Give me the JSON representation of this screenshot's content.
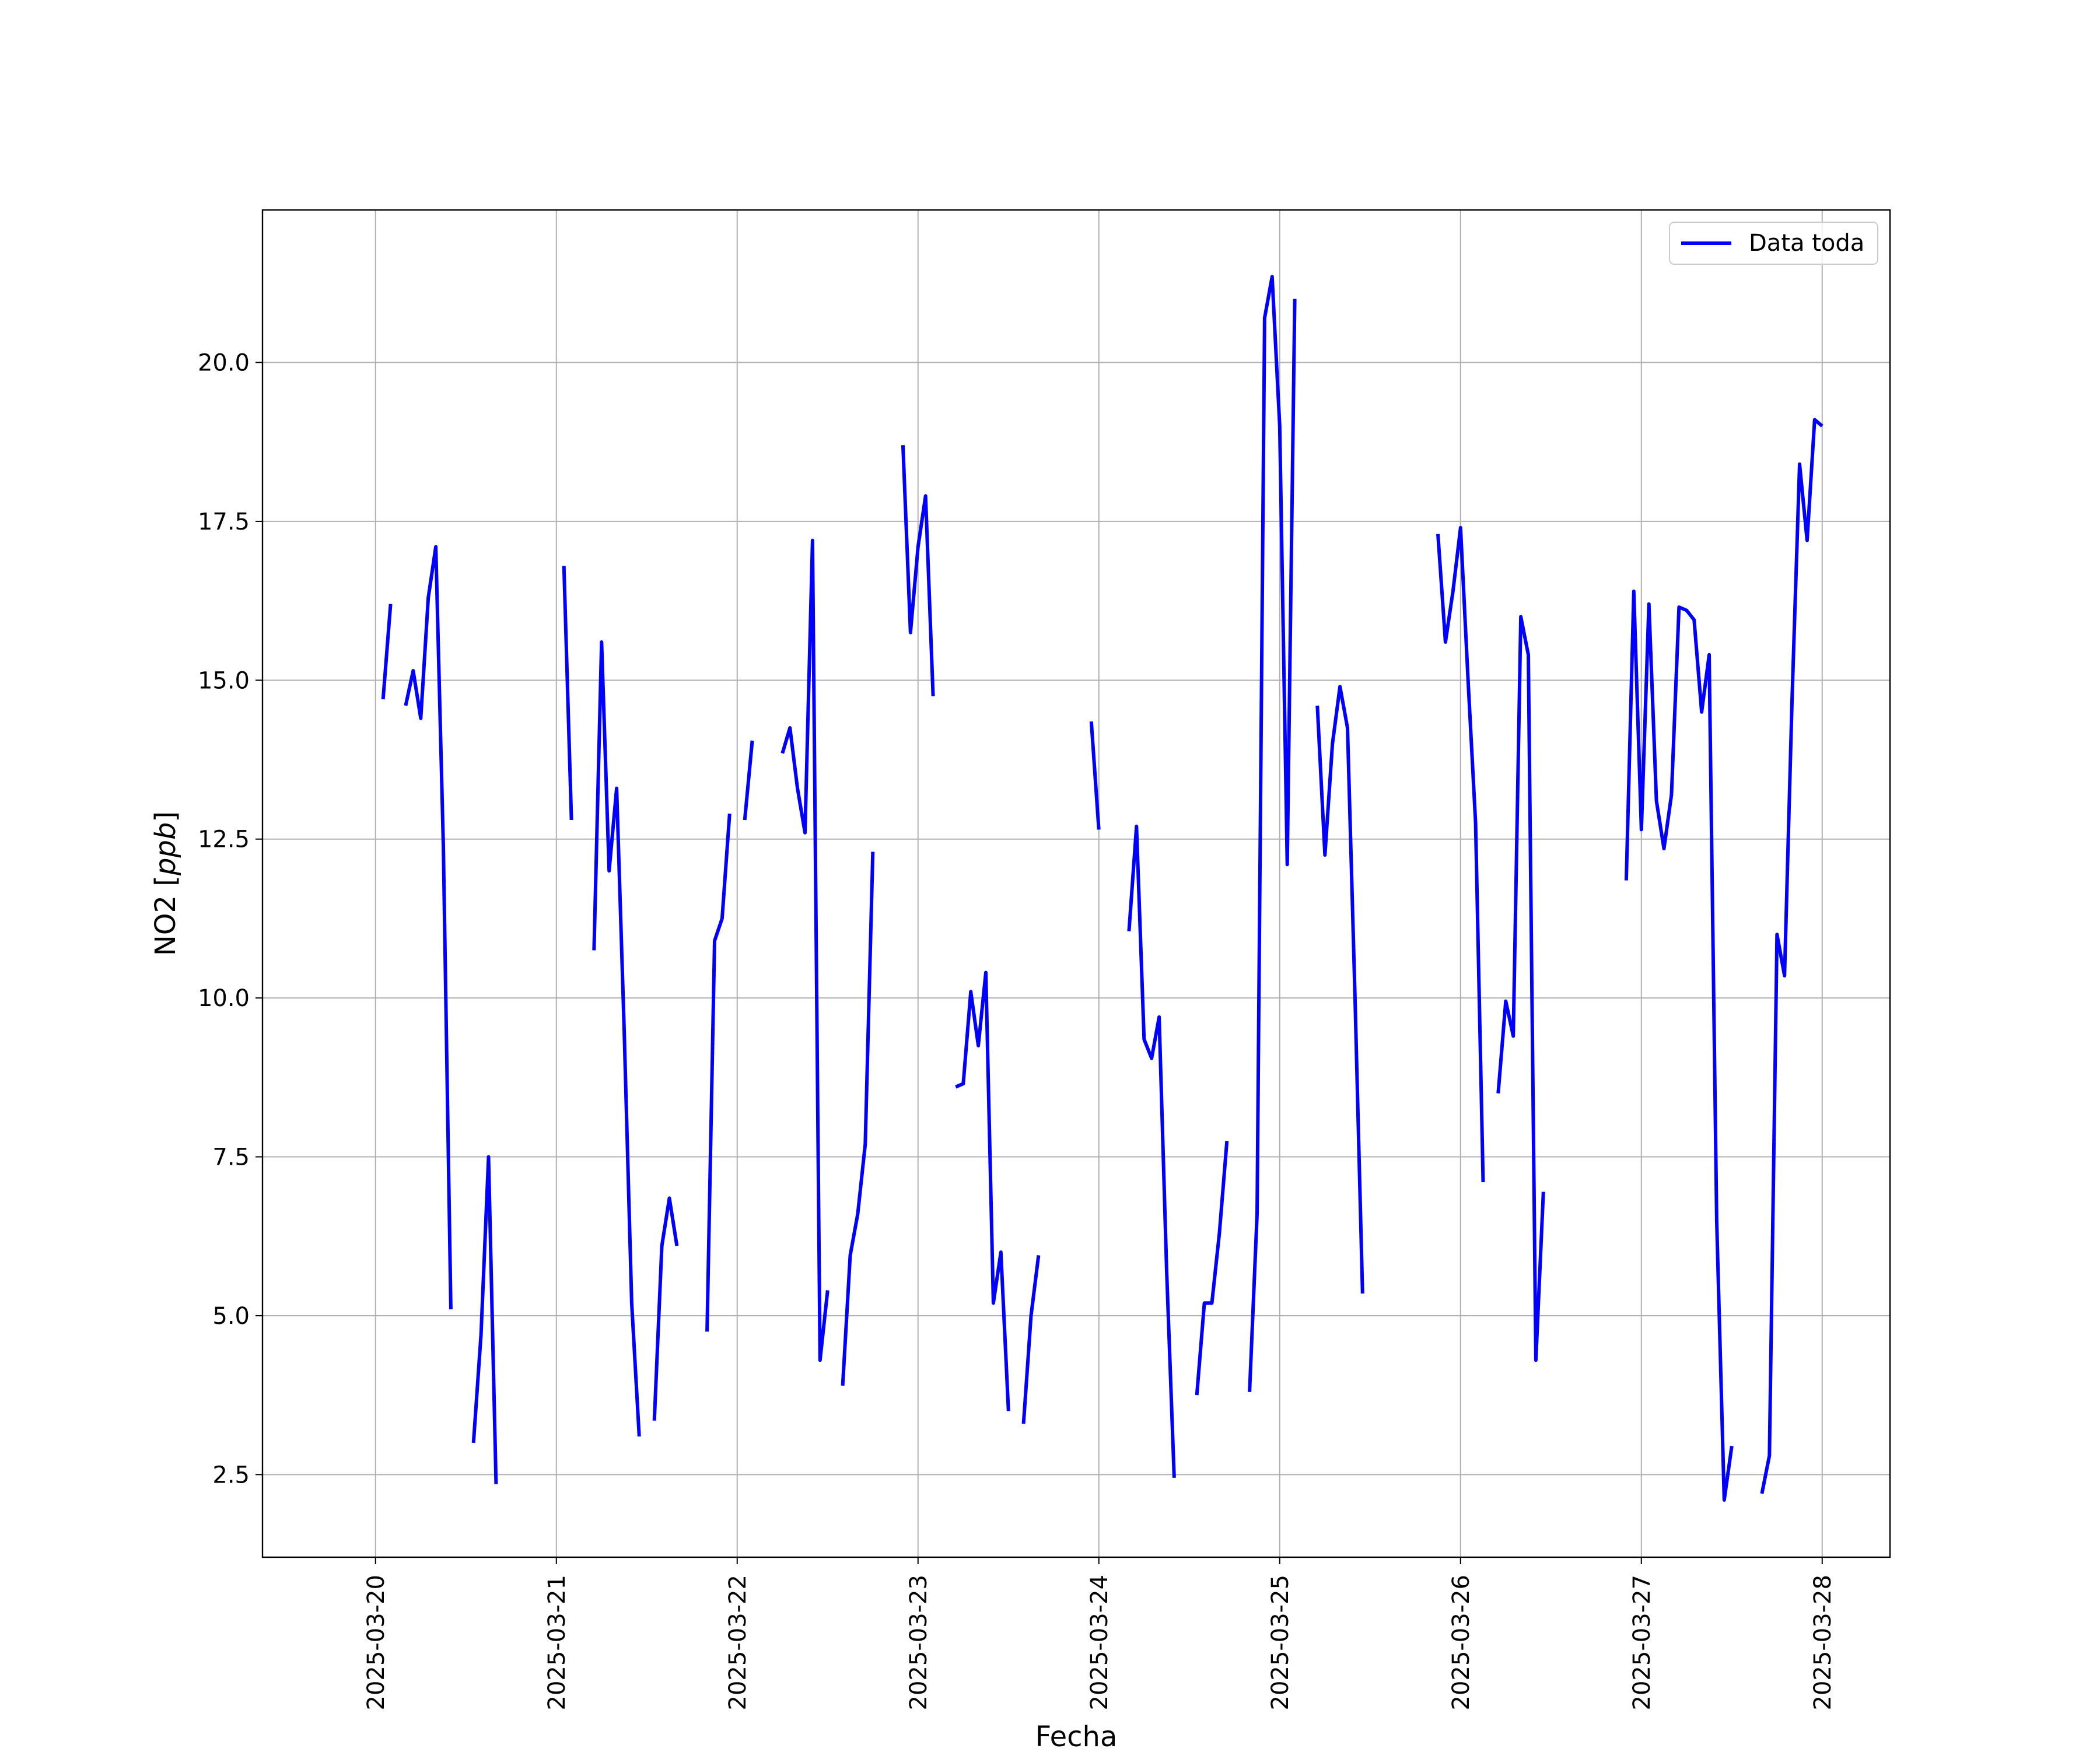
{
  "chart_data": {
    "type": "line",
    "xlabel": "Fecha",
    "ylabel_main": "NO2 [",
    "ylabel_unit": "ppb",
    "ylabel_close": "]",
    "xlim": [
      "2025-03-19T09:00",
      "2025-03-28T09:00"
    ],
    "ylim": [
      1.2,
      22.4
    ],
    "grid": true,
    "legend_position": "top-right",
    "x_ticks": [
      "2025-03-20",
      "2025-03-21",
      "2025-03-22",
      "2025-03-23",
      "2025-03-24",
      "2025-03-25",
      "2025-03-26",
      "2025-03-27",
      "2025-03-28"
    ],
    "y_ticks": [
      "2.5",
      "5.0",
      "7.5",
      "10.0",
      "12.5",
      "15.0",
      "17.5",
      "20.0"
    ],
    "series": [
      {
        "name": "Data toda",
        "color": "#0000ff",
        "segments": [
          [
            [
              "2025-03-20T01:00",
              14.7
            ],
            [
              "2025-03-20T02:00",
              16.2
            ]
          ],
          [
            [
              "2025-03-20T04:00",
              14.6
            ],
            [
              "2025-03-20T05:00",
              15.15
            ],
            [
              "2025-03-20T06:00",
              14.4
            ],
            [
              "2025-03-20T07:00",
              16.3
            ],
            [
              "2025-03-20T08:00",
              17.1
            ],
            [
              "2025-03-20T09:00",
              12.4
            ],
            [
              "2025-03-20T10:00",
              5.1
            ]
          ],
          [
            [
              "2025-03-20T13:00",
              3.0
            ],
            [
              "2025-03-20T14:00",
              4.7
            ],
            [
              "2025-03-20T15:00",
              7.5
            ],
            [
              "2025-03-20T16:00",
              2.35
            ]
          ],
          [
            [
              "2025-03-21T01:00",
              16.8
            ],
            [
              "2025-03-21T02:00",
              12.8
            ]
          ],
          [
            [
              "2025-03-21T05:00",
              10.75
            ],
            [
              "2025-03-21T06:00",
              15.6
            ],
            [
              "2025-03-21T07:00",
              12.0
            ],
            [
              "2025-03-21T08:00",
              13.3
            ],
            [
              "2025-03-21T09:00",
              9.5
            ],
            [
              "2025-03-21T10:00",
              5.2
            ],
            [
              "2025-03-21T11:00",
              3.1
            ]
          ],
          [
            [
              "2025-03-21T13:00",
              3.35
            ],
            [
              "2025-03-21T14:00",
              6.1
            ],
            [
              "2025-03-21T15:00",
              6.85
            ],
            [
              "2025-03-21T16:00",
              6.1
            ]
          ],
          [
            [
              "2025-03-21T20:00",
              4.75
            ],
            [
              "2025-03-21T21:00",
              10.9
            ],
            [
              "2025-03-21T22:00",
              11.25
            ],
            [
              "2025-03-21T23:00",
              12.9
            ]
          ],
          [
            [
              "2025-03-22T01:00",
              12.8
            ],
            [
              "2025-03-22T02:00",
              14.05
            ]
          ],
          [
            [
              "2025-03-22T06:00",
              13.85
            ],
            [
              "2025-03-22T07:00",
              14.25
            ],
            [
              "2025-03-22T08:00",
              13.3
            ],
            [
              "2025-03-22T09:00",
              12.6
            ],
            [
              "2025-03-22T10:00",
              17.2
            ],
            [
              "2025-03-22T11:00",
              4.3
            ],
            [
              "2025-03-22T12:00",
              5.4
            ]
          ],
          [
            [
              "2025-03-22T14:00",
              3.9
            ],
            [
              "2025-03-22T15:00",
              5.95
            ],
            [
              "2025-03-22T16:00",
              6.6
            ],
            [
              "2025-03-22T17:00",
              7.7
            ],
            [
              "2025-03-22T18:00",
              12.3
            ]
          ],
          [
            [
              "2025-03-22T22:00",
              18.7
            ],
            [
              "2025-03-22T23:00",
              15.75
            ],
            [
              "2025-03-23T00:00",
              17.1
            ],
            [
              "2025-03-23T01:00",
              17.9
            ],
            [
              "2025-03-23T02:00",
              14.75
            ]
          ],
          [
            [
              "2025-03-23T05:00",
              8.6
            ],
            [
              "2025-03-23T06:00",
              8.65
            ],
            [
              "2025-03-23T07:00",
              10.1
            ],
            [
              "2025-03-23T08:00",
              9.25
            ],
            [
              "2025-03-23T09:00",
              10.4
            ],
            [
              "2025-03-23T10:00",
              5.2
            ],
            [
              "2025-03-23T11:00",
              6.0
            ],
            [
              "2025-03-23T12:00",
              3.5
            ]
          ],
          [
            [
              "2025-03-23T14:00",
              3.3
            ],
            [
              "2025-03-23T15:00",
              5.0
            ],
            [
              "2025-03-23T16:00",
              5.95
            ]
          ],
          [
            [
              "2025-03-23T23:00",
              14.35
            ],
            [
              "2025-03-24T00:00",
              12.65
            ]
          ],
          [
            [
              "2025-03-24T04:00",
              11.05
            ],
            [
              "2025-03-24T05:00",
              12.7
            ],
            [
              "2025-03-24T06:00",
              9.35
            ],
            [
              "2025-03-24T07:00",
              9.05
            ],
            [
              "2025-03-24T08:00",
              9.7
            ],
            [
              "2025-03-24T09:00",
              5.7
            ],
            [
              "2025-03-24T10:00",
              2.45
            ]
          ],
          [
            [
              "2025-03-24T13:00",
              3.75
            ],
            [
              "2025-03-24T14:00",
              5.2
            ],
            [
              "2025-03-24T15:00",
              5.2
            ],
            [
              "2025-03-24T16:00",
              6.3
            ],
            [
              "2025-03-24T17:00",
              7.75
            ]
          ],
          [
            [
              "2025-03-24T20:00",
              3.8
            ],
            [
              "2025-03-24T21:00",
              6.6
            ],
            [
              "2025-03-24T22:00",
              20.7
            ],
            [
              "2025-03-24T23:00",
              21.35
            ],
            [
              "2025-03-25T00:00",
              19.0
            ],
            [
              "2025-03-25T01:00",
              12.1
            ],
            [
              "2025-03-25T02:00",
              21.0
            ]
          ],
          [
            [
              "2025-03-25T05:00",
              14.6
            ],
            [
              "2025-03-25T06:00",
              12.25
            ],
            [
              "2025-03-25T07:00",
              14.0
            ],
            [
              "2025-03-25T08:00",
              14.9
            ],
            [
              "2025-03-25T09:00",
              14.25
            ],
            [
              "2025-03-25T10:00",
              10.0
            ],
            [
              "2025-03-25T11:00",
              5.35
            ]
          ],
          [
            [
              "2025-03-25T21:00",
              17.3
            ],
            [
              "2025-03-25T22:00",
              15.6
            ],
            [
              "2025-03-25T23:00",
              16.4
            ],
            [
              "2025-03-26T00:00",
              17.4
            ],
            [
              "2025-03-26T01:00",
              15.0
            ],
            [
              "2025-03-26T02:00",
              12.75
            ],
            [
              "2025-03-26T03:00",
              7.1
            ]
          ],
          [
            [
              "2025-03-26T05:00",
              8.5
            ],
            [
              "2025-03-26T06:00",
              9.95
            ],
            [
              "2025-03-26T07:00",
              9.4
            ],
            [
              "2025-03-26T08:00",
              16.0
            ],
            [
              "2025-03-26T09:00",
              15.4
            ],
            [
              "2025-03-26T10:00",
              4.3
            ],
            [
              "2025-03-26T11:00",
              6.95
            ]
          ],
          [
            [
              "2025-03-26T22:00",
              11.85
            ],
            [
              "2025-03-26T23:00",
              16.4
            ],
            [
              "2025-03-27T00:00",
              12.65
            ],
            [
              "2025-03-27T01:00",
              16.2
            ],
            [
              "2025-03-27T02:00",
              13.1
            ],
            [
              "2025-03-27T03:00",
              12.35
            ],
            [
              "2025-03-27T04:00",
              13.2
            ],
            [
              "2025-03-27T05:00",
              16.15
            ],
            [
              "2025-03-27T06:00",
              16.1
            ],
            [
              "2025-03-27T07:00",
              15.95
            ],
            [
              "2025-03-27T08:00",
              14.5
            ],
            [
              "2025-03-27T09:00",
              15.4
            ],
            [
              "2025-03-27T10:00",
              6.5
            ],
            [
              "2025-03-27T11:00",
              2.1
            ],
            [
              "2025-03-27T12:00",
              2.95
            ]
          ],
          [
            [
              "2025-03-27T16:00",
              2.2
            ],
            [
              "2025-03-27T17:00",
              2.8
            ],
            [
              "2025-03-27T18:00",
              11.0
            ],
            [
              "2025-03-27T19:00",
              10.35
            ],
            [
              "2025-03-27T20:00",
              14.7
            ],
            [
              "2025-03-27T21:00",
              18.4
            ],
            [
              "2025-03-27T22:00",
              17.2
            ],
            [
              "2025-03-27T23:00",
              19.1
            ],
            [
              "2025-03-28T00:00",
              19.0
            ]
          ]
        ]
      }
    ]
  }
}
